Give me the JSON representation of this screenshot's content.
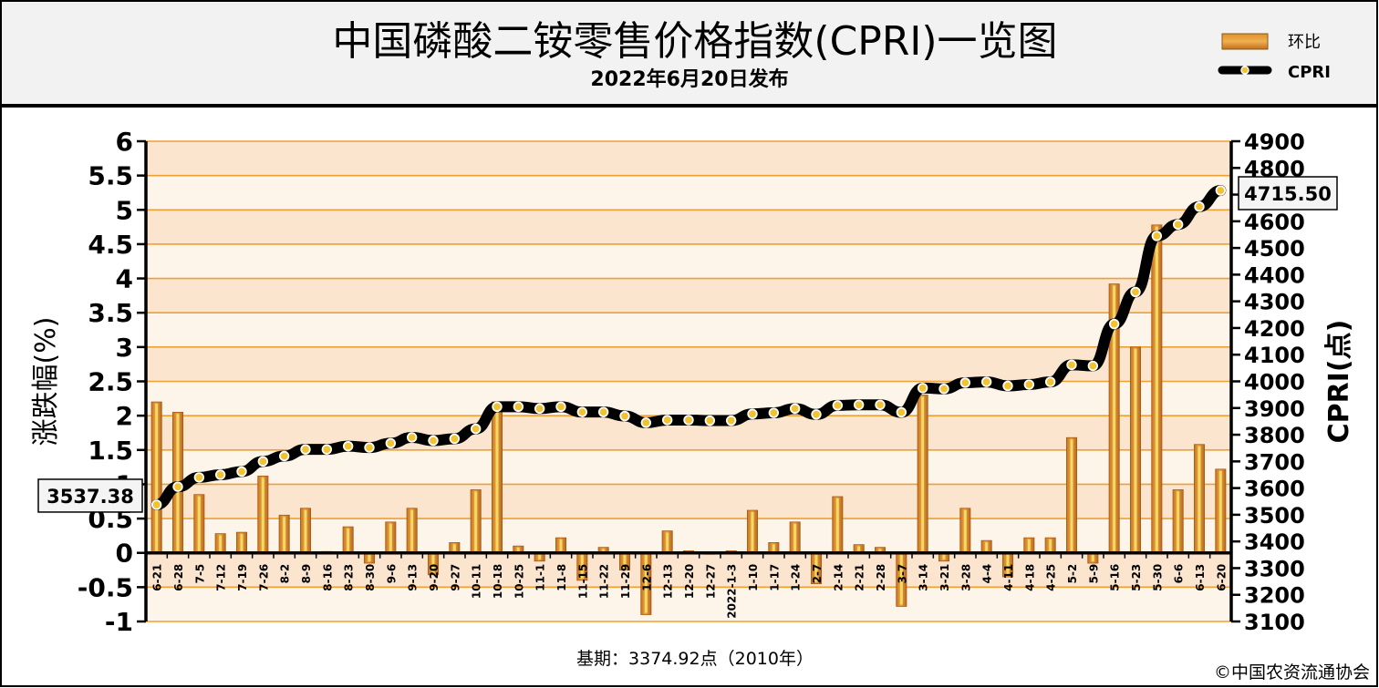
{
  "header": {
    "title": "中国磷酸二铵零售价格指数(CPRI)一览图",
    "subtitle": "2022年6月20日发布"
  },
  "legend": [
    {
      "label": "环比",
      "color": "#d98a2e"
    },
    {
      "label": "CPRI",
      "color": "#000000"
    }
  ],
  "footer": {
    "base_note": "基期：3374.92点（2010年）",
    "copyright": "©中国农资流通协会"
  },
  "callouts": {
    "first": "3537.38",
    "last": "4715.50"
  },
  "chart_data": {
    "type": "bar",
    "categories": [
      "6-21",
      "6-28",
      "7-5",
      "7-12",
      "7-19",
      "7-26",
      "8-2",
      "8-9",
      "8-16",
      "8-23",
      "8-30",
      "9-6",
      "9-13",
      "9-20",
      "9-27",
      "10-11",
      "10-18",
      "10-25",
      "11-1",
      "11-8",
      "11-15",
      "11-22",
      "11-29",
      "12-6",
      "12-13",
      "12-20",
      "12-27",
      "2022-1-3",
      "1-10",
      "1-17",
      "1-24",
      "2-7",
      "2-14",
      "2-21",
      "2-28",
      "3-7",
      "3-14",
      "3-21",
      "3-28",
      "4-4",
      "4-11",
      "4-18",
      "4-25",
      "5-2",
      "5-9",
      "5-16",
      "5-23",
      "5-30",
      "6-6",
      "6-13",
      "6-20"
    ],
    "series": [
      {
        "name": "环比",
        "axis": "left",
        "values": [
          2.2,
          2.05,
          0.85,
          0.28,
          0.3,
          1.12,
          0.55,
          0.65,
          0.02,
          0.38,
          -0.15,
          0.45,
          0.65,
          -0.32,
          0.15,
          0.92,
          2.2,
          0.1,
          -0.12,
          0.22,
          -0.4,
          0.08,
          -0.25,
          -0.9,
          0.32,
          0.03,
          -0.02,
          0.03,
          0.62,
          0.15,
          0.45,
          -0.45,
          0.82,
          0.12,
          0.08,
          -0.78,
          2.3,
          -0.12,
          0.65,
          0.18,
          -0.35,
          0.22,
          0.22,
          1.68,
          -0.15,
          3.92,
          3.0,
          4.78,
          0.92,
          1.58,
          1.22
        ]
      },
      {
        "name": "CPRI",
        "axis": "right",
        "values": [
          3537.38,
          3605,
          3640,
          3650,
          3662,
          3700,
          3720,
          3745,
          3745,
          3757,
          3752,
          3768,
          3790,
          3778,
          3785,
          3822,
          3905,
          3905,
          3898,
          3905,
          3885,
          3885,
          3870,
          3845,
          3855,
          3855,
          3853,
          3853,
          3878,
          3882,
          3898,
          3876,
          3910,
          3912,
          3912,
          3884,
          3975,
          3972,
          3995,
          3998,
          3983,
          3988,
          3998,
          4062,
          4058,
          4215,
          4335,
          4545,
          4588,
          4655,
          4715.5
        ]
      }
    ],
    "y_left": {
      "label": "涨跌幅(%)",
      "min": -1,
      "max": 6,
      "ticks": [
        "-1",
        "-0.5",
        "0",
        "0.5",
        "1",
        "1.5",
        "2",
        "2.5",
        "3",
        "3.5",
        "4",
        "4.5",
        "5",
        "5.5",
        "6"
      ]
    },
    "y_right": {
      "label": "CPRI(点)",
      "min": 3100,
      "max": 4900,
      "ticks": [
        "3100",
        "3200",
        "3300",
        "3400",
        "3500",
        "3600",
        "3700",
        "3800",
        "3900",
        "4000",
        "4100",
        "4200",
        "4300",
        "4400",
        "4500",
        "4600",
        "4700",
        "4800",
        "4900"
      ]
    },
    "grid": true,
    "legend_position": "top-right"
  }
}
